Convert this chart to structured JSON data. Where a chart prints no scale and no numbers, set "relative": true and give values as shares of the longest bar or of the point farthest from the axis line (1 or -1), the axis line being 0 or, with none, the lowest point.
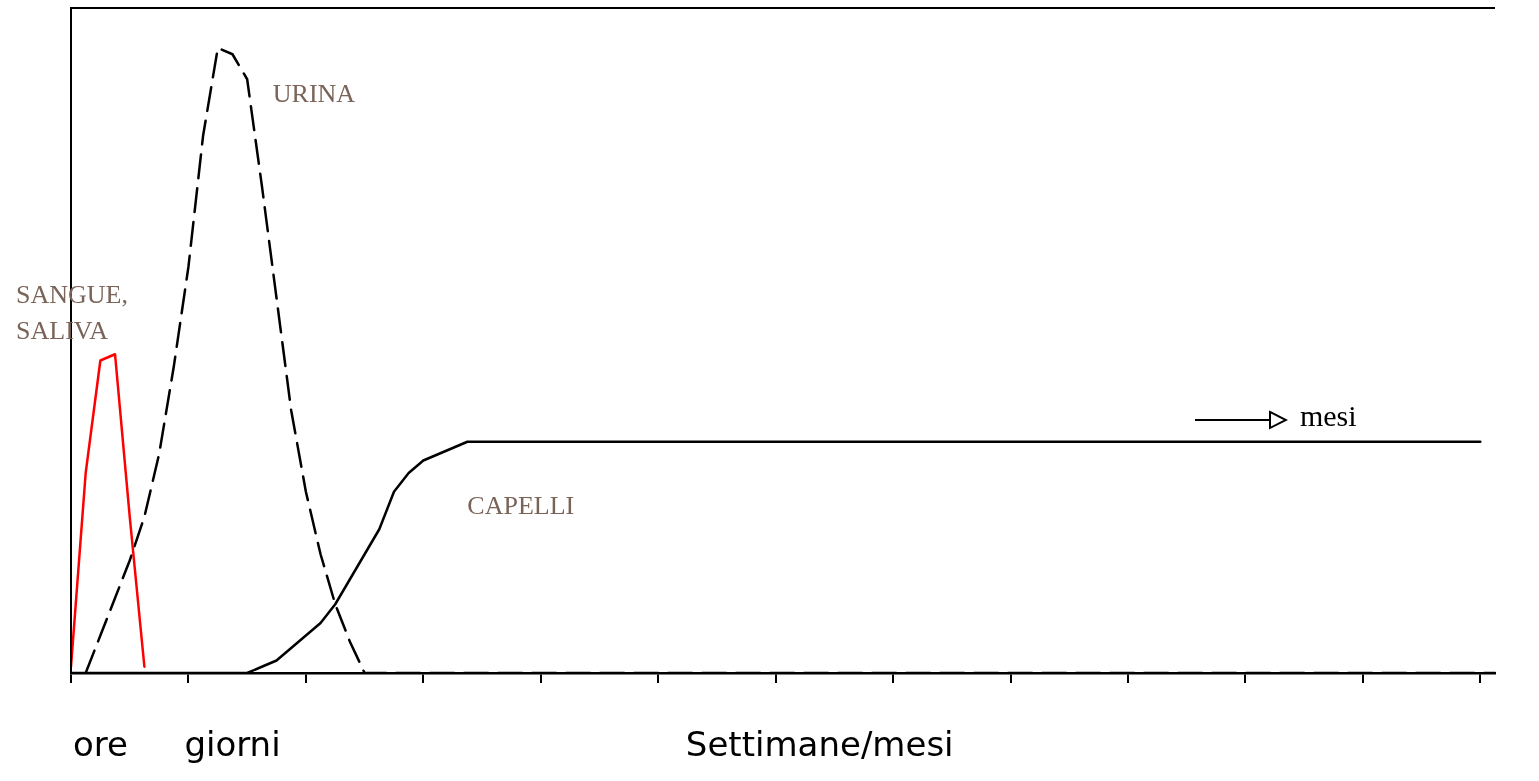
{
  "chart_data": {
    "type": "line",
    "relative": true,
    "marker": "none",
    "grid": false,
    "legend": false,
    "categories": [
      null,
      null,
      "ore",
      null,
      null,
      null,
      null,
      null,
      null,
      null,
      null,
      "giorni",
      null,
      null,
      null,
      null,
      null,
      null,
      null,
      null,
      null,
      null,
      null,
      null,
      null,
      null,
      null,
      null,
      null,
      null,
      null,
      null,
      null,
      null,
      null,
      null,
      null,
      null,
      null,
      null,
      null,
      null,
      null,
      null,
      null,
      null,
      null,
      null,
      null,
      null,
      null,
      "Settimane/mesi",
      null,
      null,
      null,
      null,
      null,
      null,
      null,
      null,
      null,
      null,
      null,
      null,
      null,
      null,
      null,
      null,
      null,
      null,
      null,
      null,
      null,
      null,
      null,
      null,
      null,
      null,
      null,
      null,
      null,
      null,
      null,
      null,
      null,
      null,
      null,
      null,
      null,
      null,
      null,
      null,
      null,
      null,
      null,
      null,
      null,
      null
    ],
    "series": [
      {
        "name": "SANGUE, SALIVA",
        "color": "#ff0000",
        "line_style": "solid",
        "values": [
          0.01,
          0.32,
          0.5,
          0.51,
          0.25,
          0.01,
          null,
          null,
          null,
          null,
          null,
          null,
          null,
          null,
          null,
          null,
          null,
          null,
          null,
          null,
          null,
          null,
          null,
          null,
          null,
          null,
          null,
          null,
          null,
          null,
          null,
          null,
          null,
          null,
          null,
          null,
          null,
          null,
          null,
          null,
          null,
          null,
          null,
          null,
          null,
          null,
          null,
          null,
          null,
          null,
          null,
          null,
          null,
          null,
          null,
          null,
          null,
          null,
          null,
          null,
          null,
          null,
          null,
          null,
          null,
          null,
          null,
          null,
          null,
          null,
          null,
          null,
          null,
          null,
          null,
          null,
          null,
          null,
          null,
          null,
          null,
          null,
          null,
          null,
          null,
          null,
          null,
          null,
          null,
          null,
          null,
          null,
          null,
          null,
          null,
          null,
          null,
          null
        ]
      },
      {
        "name": "URINA",
        "color": "#000000",
        "line_style": "dashed",
        "values": [
          null,
          0,
          0.06,
          0.12,
          0.18,
          0.25,
          0.35,
          0.49,
          0.65,
          0.86,
          1,
          0.99,
          0.95,
          0.78,
          0.6,
          0.42,
          0.29,
          0.19,
          0.11,
          0.05,
          0,
          0,
          0,
          0,
          0,
          0,
          0,
          0,
          0,
          0,
          0,
          0,
          0,
          0,
          0,
          0,
          0,
          0,
          0,
          0,
          0,
          0,
          0,
          0,
          0,
          0,
          0,
          0,
          0,
          0,
          0,
          0,
          0,
          0,
          0,
          0,
          0,
          0,
          0,
          0,
          0,
          0,
          0,
          0,
          0,
          0,
          0,
          0,
          0,
          0,
          0,
          0,
          0,
          0,
          0,
          0,
          0,
          0,
          0,
          0,
          0,
          0,
          0,
          0,
          0,
          0,
          0,
          0,
          0,
          0,
          0,
          0,
          0,
          0,
          0,
          0,
          0,
          0
        ]
      },
      {
        "name": "CAPELLI",
        "color": "#000000",
        "line_style": "solid",
        "values": [
          0,
          0,
          0,
          0,
          0,
          0,
          0,
          0,
          0,
          0,
          0,
          0,
          0,
          0.01,
          0.02,
          0.04,
          0.06,
          0.08,
          0.11,
          0.15,
          0.19,
          0.23,
          0.29,
          0.32,
          0.34,
          0.35,
          0.36,
          0.37,
          0.37,
          0.37,
          0.37,
          0.37,
          0.37,
          0.37,
          0.37,
          0.37,
          0.37,
          0.37,
          0.37,
          0.37,
          0.37,
          0.37,
          0.37,
          0.37,
          0.37,
          0.37,
          0.37,
          0.37,
          0.37,
          0.37,
          0.37,
          0.37,
          0.37,
          0.37,
          0.37,
          0.37,
          0.37,
          0.37,
          0.37,
          0.37,
          0.37,
          0.37,
          0.37,
          0.37,
          0.37,
          0.37,
          0.37,
          0.37,
          0.37,
          0.37,
          0.37,
          0.37,
          0.37,
          0.37,
          0.37,
          0.37,
          0.37,
          0.37,
          0.37,
          0.37,
          0.37,
          0.37,
          0.37,
          0.37,
          0.37,
          0.37,
          0.37,
          0.37,
          0.37,
          0.37,
          0.37,
          0.37,
          0.37,
          0.37,
          0.37,
          0.37,
          0.37,
          null
        ]
      }
    ],
    "annotations": [
      "mesi"
    ]
  }
}
